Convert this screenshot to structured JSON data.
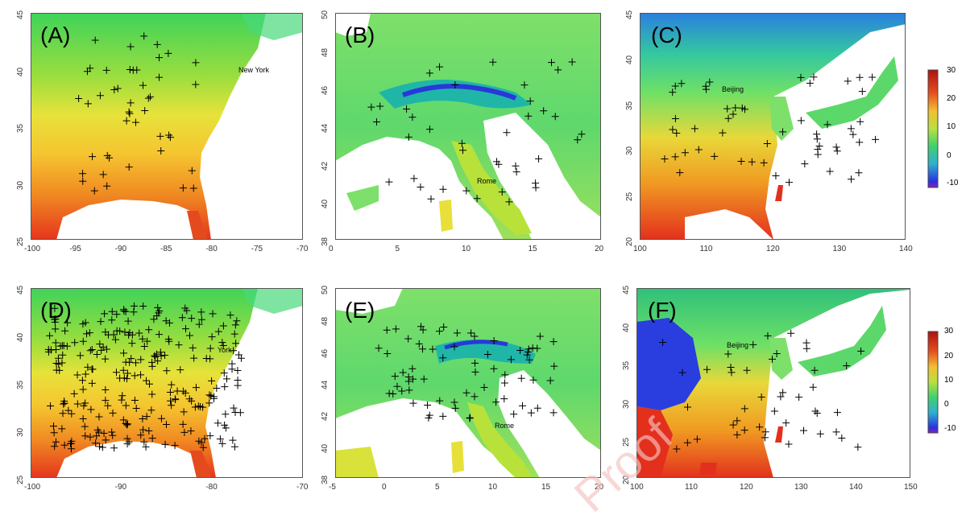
{
  "panels": [
    {
      "id": "A",
      "label": "(A)",
      "region": "eastern-us",
      "scheme": "warm",
      "xticks": [
        "-100",
        "-95",
        "-90",
        "-85",
        "-80",
        "-75",
        "-70"
      ],
      "yticks": [
        "25",
        "30",
        "35",
        "40",
        "45"
      ],
      "city": "New York"
    },
    {
      "id": "B",
      "label": "(B)",
      "region": "italy-alps",
      "scheme": "cool",
      "xticks": [
        "0",
        "5",
        "10",
        "15",
        "20"
      ],
      "yticks": [
        "38",
        "40",
        "42",
        "44",
        "46",
        "48",
        "50"
      ],
      "city": "Rome"
    },
    {
      "id": "C",
      "label": "(C)",
      "region": "east-asia",
      "scheme": "mixed",
      "xticks": [
        "100",
        "110",
        "120",
        "130",
        "140"
      ],
      "yticks": [
        "20",
        "25",
        "30",
        "35",
        "40",
        "45"
      ],
      "city": "Beijing"
    },
    {
      "id": "D",
      "label": "(D)",
      "region": "eastern-us",
      "scheme": "warm",
      "xticks": [
        "-100",
        "-90",
        "-80",
        "-70"
      ],
      "yticks": [
        "25",
        "30",
        "35",
        "40",
        "45"
      ],
      "city": "York"
    },
    {
      "id": "E",
      "label": "(E)",
      "region": "italy-alps",
      "scheme": "cool",
      "xticks": [
        "-5",
        "0",
        "5",
        "10",
        "15",
        "20"
      ],
      "yticks": [
        "38",
        "40",
        "42",
        "44",
        "46",
        "48",
        "50"
      ],
      "city": "Rome"
    },
    {
      "id": "F",
      "label": "(F)",
      "region": "east-asia",
      "scheme": "mixed",
      "xticks": [
        "100",
        "110",
        "120",
        "130",
        "140",
        "150"
      ],
      "yticks": [
        "20",
        "25",
        "30",
        "35",
        "40",
        "45"
      ],
      "city": "Beijing"
    }
  ],
  "colorbars": [
    {
      "ticks": [
        "30",
        "20",
        "10",
        "0",
        "-10"
      ]
    },
    {
      "ticks": [
        "30",
        "20",
        "10",
        "0",
        "-10"
      ]
    }
  ],
  "colors": {
    "red": "#e8321e",
    "orange": "#f09a1e",
    "yellow": "#f2e23c",
    "green": "#38d36a",
    "lightgreen": "#7ee06a",
    "cyan": "#2ec7b6",
    "blue": "#2424e0",
    "purple": "#7a1fa8",
    "water": "#ffffff",
    "marker": "#000000"
  },
  "watermark": "Proof"
}
